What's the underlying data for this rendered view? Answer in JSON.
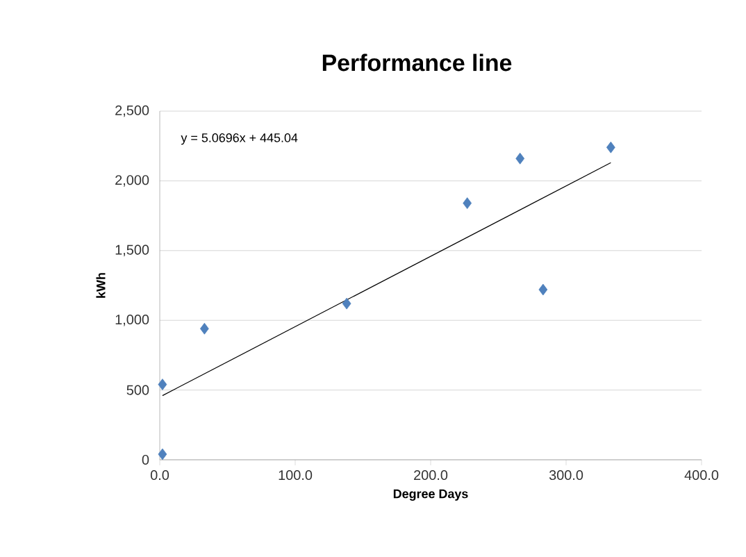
{
  "chart_data": {
    "type": "scatter",
    "title": "Performance line",
    "xlabel": "Degree Days",
    "ylabel": "kWh",
    "annotations": [
      "y = 5.0696x + 445.04"
    ],
    "series": [
      {
        "color": "#4f81bd",
        "marker": "diamond",
        "x": [
          2,
          2,
          33,
          138,
          227,
          266,
          283,
          333
        ],
        "values": [
          40,
          540,
          940,
          1120,
          1840,
          2160,
          1220,
          2240
        ]
      },
      {
        "type": "line",
        "color": "#000000",
        "marker": "none",
        "line_style": "solid",
        "x": [
          2,
          333
        ],
        "values": [
          460,
          2130
        ]
      }
    ],
    "xlim": [
      0,
      400
    ],
    "ylim": [
      0,
      2500
    ],
    "xticks": [
      {
        "value": 0,
        "label": "0.0"
      },
      {
        "value": 100,
        "label": "100.0"
      },
      {
        "value": 200,
        "label": "200.0"
      },
      {
        "value": 300,
        "label": "300.0"
      },
      {
        "value": 400,
        "label": "400.0"
      }
    ],
    "yticks": [
      0,
      {
        "value": 500,
        "label": "500"
      },
      {
        "value": 1000,
        "label": "1,000"
      },
      {
        "value": 1500,
        "label": "1,500"
      },
      {
        "value": 2000,
        "label": "2,000"
      },
      {
        "value": 2500,
        "label": "2,500"
      }
    ],
    "grid": "y"
  }
}
